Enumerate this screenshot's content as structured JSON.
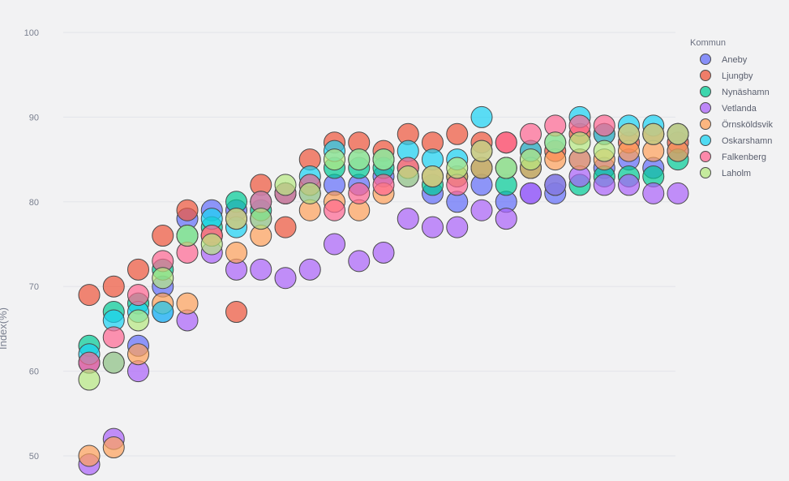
{
  "chart_data": {
    "type": "scatter",
    "title": "",
    "xlabel": "",
    "ylabel": "Index(%)",
    "ylim": [
      48,
      102
    ],
    "xlim": [
      0,
      26
    ],
    "yticks": [
      50,
      60,
      70,
      80,
      90,
      100
    ],
    "grid": true,
    "legend": {
      "title": "Kommun",
      "placement": "right"
    },
    "series": [
      {
        "name": "Aneby",
        "color": "#636efa",
        "x": [
          1,
          2,
          3,
          4,
          5,
          6,
          7,
          8,
          9,
          10,
          11,
          12,
          13,
          14,
          15,
          16,
          17,
          18,
          19,
          20,
          21,
          22,
          23,
          24,
          25
        ],
        "y": [
          61,
          61,
          63,
          70,
          78,
          79,
          79,
          78,
          81,
          81,
          82,
          82,
          83,
          83,
          81,
          80,
          82,
          80,
          81,
          81,
          85,
          84,
          85,
          84,
          86
        ]
      },
      {
        "name": "Ljungby",
        "color": "#ef553b",
        "x": [
          1,
          2,
          3,
          4,
          5,
          6,
          7,
          8,
          9,
          10,
          11,
          12,
          13,
          14,
          15,
          16,
          17,
          18,
          19,
          20,
          21,
          22,
          23,
          24,
          25
        ],
        "y": [
          69,
          70,
          72,
          76,
          79,
          76,
          67,
          82,
          77,
          85,
          87,
          87,
          86,
          88,
          87,
          88,
          87,
          87,
          86,
          86,
          88,
          88,
          87,
          88,
          87
        ]
      },
      {
        "name": "Nynäshamn",
        "color": "#00cc96",
        "x": [
          1,
          2,
          3,
          4,
          5,
          6,
          7,
          8,
          9,
          10,
          11,
          12,
          13,
          14,
          15,
          16,
          17,
          18,
          19,
          20,
          21,
          22,
          23,
          24,
          25
        ],
        "y": [
          63,
          67,
          68,
          72,
          76,
          77,
          80,
          79,
          81,
          82,
          84,
          84,
          84,
          84,
          82,
          83,
          84,
          82,
          84,
          82,
          82,
          83,
          83,
          83,
          85
        ]
      },
      {
        "name": "Vetlanda",
        "color": "#ab63fa",
        "x": [
          1,
          2,
          3,
          4,
          5,
          6,
          7,
          8,
          9,
          10,
          11,
          12,
          13,
          14,
          15,
          16,
          17,
          18,
          19,
          20,
          21,
          22,
          23,
          24,
          25
        ],
        "y": [
          49,
          52,
          60,
          67,
          66,
          74,
          72,
          72,
          71,
          72,
          75,
          73,
          74,
          78,
          77,
          77,
          79,
          78,
          81,
          82,
          83,
          82,
          82,
          81,
          81
        ]
      },
      {
        "name": "Örnsköldsvik",
        "color": "#ffa15a",
        "x": [
          1,
          2,
          3,
          4,
          5,
          6,
          7,
          8,
          9,
          10,
          11,
          12,
          13,
          14,
          15,
          16,
          17,
          18,
          19,
          20,
          21,
          22,
          23,
          24,
          25
        ],
        "y": [
          50,
          51,
          62,
          68,
          68,
          76,
          74,
          76,
          81,
          79,
          80,
          79,
          81,
          84,
          83,
          83,
          84,
          84,
          84,
          85,
          85,
          85,
          86,
          86,
          86
        ]
      },
      {
        "name": "Oskarshamn",
        "color": "#19d3f3",
        "x": [
          1,
          2,
          3,
          4,
          5,
          6,
          7,
          8,
          9,
          10,
          11,
          12,
          13,
          14,
          15,
          16,
          17,
          18,
          19,
          20,
          21,
          22,
          23,
          24,
          25
        ],
        "y": [
          62,
          66,
          67,
          67,
          76,
          78,
          77,
          80,
          81,
          83,
          86,
          85,
          85,
          86,
          85,
          85,
          90,
          84,
          86,
          87,
          90,
          88,
          89,
          89,
          88
        ]
      },
      {
        "name": "Falkenberg",
        "color": "#ff6692",
        "x": [
          1,
          2,
          3,
          4,
          5,
          6,
          7,
          8,
          9,
          10,
          11,
          12,
          13,
          14,
          15,
          16,
          17,
          18,
          19,
          20,
          21,
          22,
          23,
          24,
          25
        ],
        "y": [
          61,
          64,
          69,
          73,
          74,
          76,
          78,
          80,
          81,
          82,
          79,
          81,
          82,
          84,
          83,
          82,
          86,
          87,
          88,
          89,
          89,
          89,
          88,
          88,
          88
        ]
      },
      {
        "name": "Laholm",
        "color": "#b6e880",
        "x": [
          1,
          2,
          3,
          4,
          5,
          6,
          7,
          8,
          9,
          10,
          11,
          12,
          13,
          14,
          15,
          16,
          17,
          18,
          19,
          20,
          21,
          22,
          23,
          24,
          25
        ],
        "y": [
          59,
          61,
          66,
          71,
          76,
          75,
          78,
          78,
          82,
          81,
          85,
          85,
          85,
          83,
          83,
          84,
          86,
          84,
          85,
          87,
          87,
          86,
          88,
          88,
          88
        ]
      }
    ]
  }
}
